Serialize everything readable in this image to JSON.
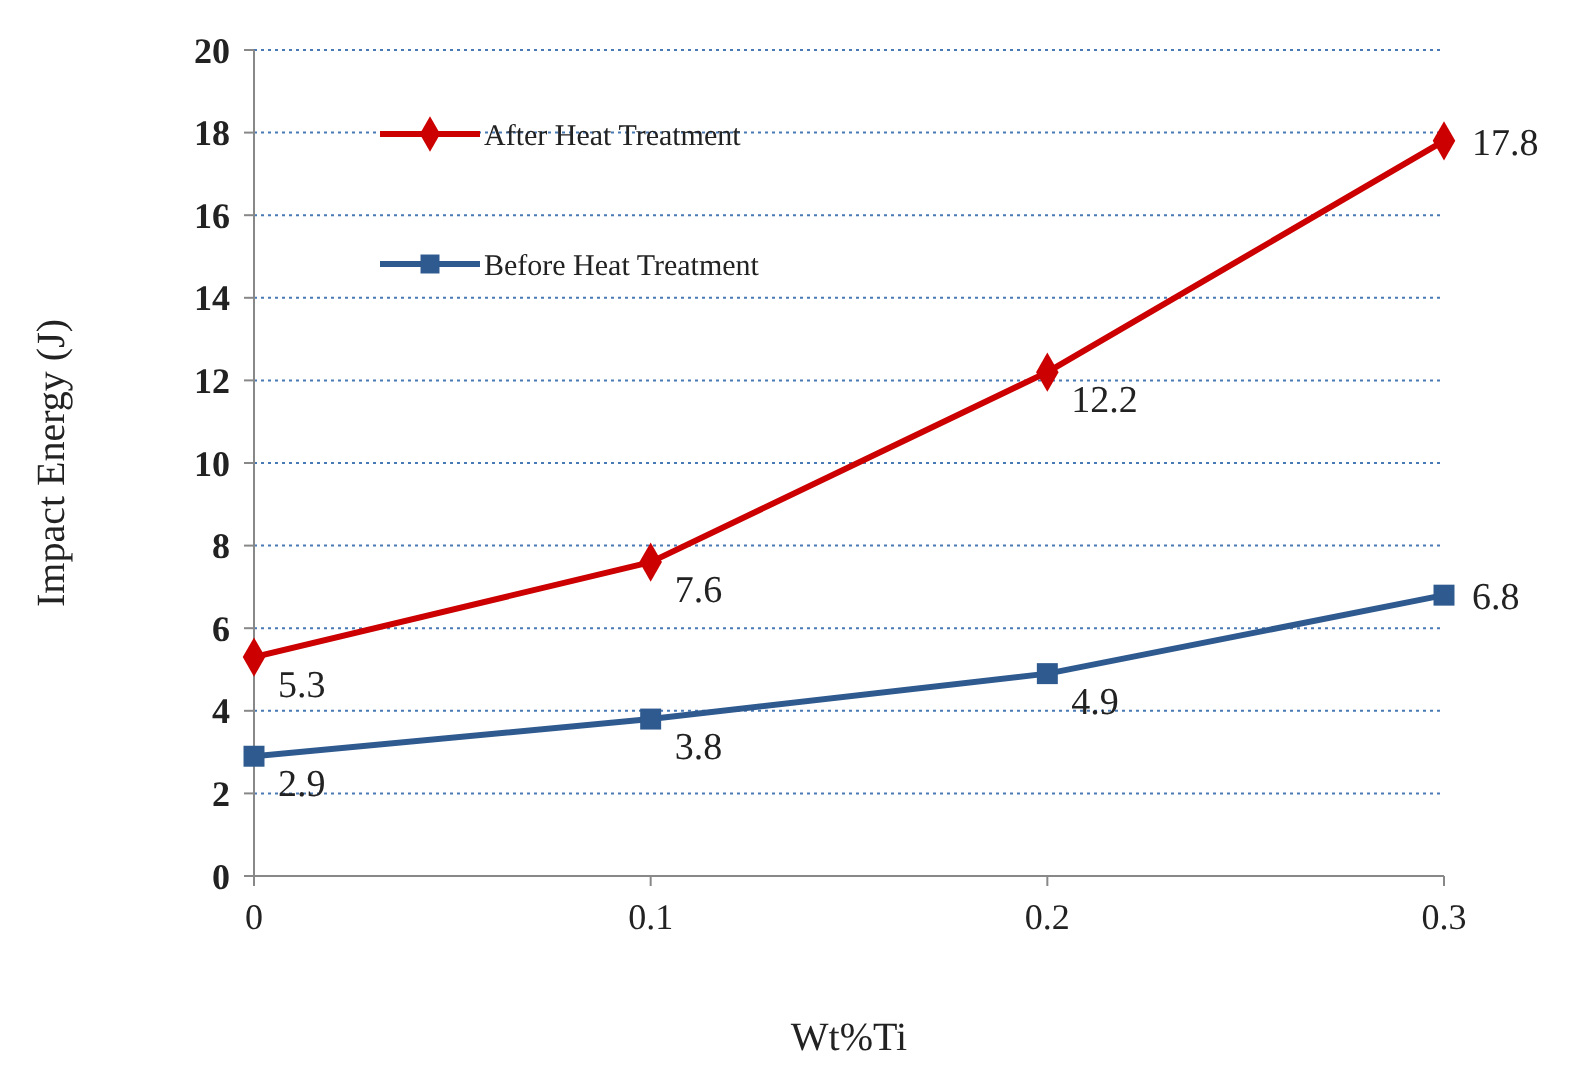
{
  "chart_data": {
    "type": "line",
    "xlabel": "Wt%Ti",
    "ylabel": "Impact Energy (J)",
    "categories": [
      "0",
      "0.1",
      "0.2",
      "0.3"
    ],
    "series": [
      {
        "name": "After Heat Treatment",
        "color": "#cc0000",
        "marker": "diamond",
        "values": [
          5.3,
          7.6,
          12.2,
          17.8
        ]
      },
      {
        "name": "Before Heat Treatment",
        "color": "#2f5a8f",
        "marker": "square",
        "values": [
          2.9,
          3.8,
          4.9,
          6.8
        ]
      }
    ],
    "ylim": [
      0,
      20
    ],
    "yticks": [
      0,
      2,
      4,
      6,
      8,
      10,
      12,
      14,
      16,
      18,
      20
    ],
    "grid": "y",
    "legend": "top left",
    "data_labels": true,
    "line_style": "solid"
  }
}
